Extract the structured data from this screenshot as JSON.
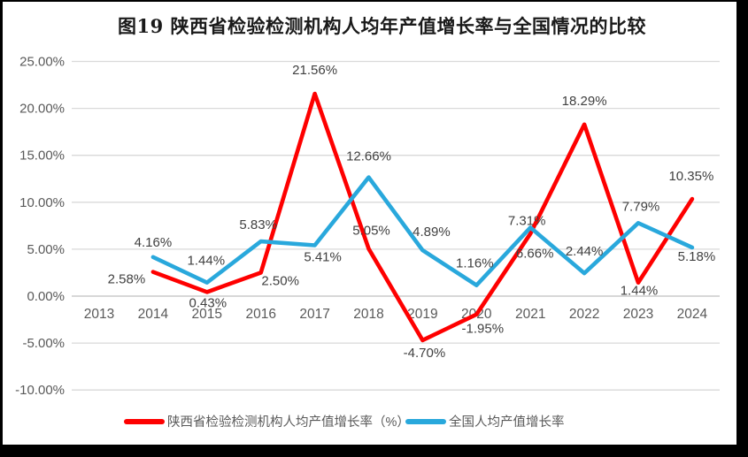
{
  "title": "图19 陕西省检验检测机构人均年产值增长率与全国情况的比较",
  "chart_data": {
    "type": "line",
    "title": "图19 陕西省检验检测机构人均年产值增长率与全国情况的比较",
    "categories": [
      "2013",
      "2014",
      "2015",
      "2016",
      "2017",
      "2018",
      "2019",
      "2020",
      "2021",
      "2022",
      "2023",
      "2024"
    ],
    "series": [
      {
        "id": "shaanxi",
        "name": "陕西省检验检测机构人均产值增长率（%）",
        "color": "#FE0000",
        "values": [
          null,
          2.58,
          0.43,
          2.5,
          21.56,
          5.05,
          -4.7,
          -1.95,
          6.66,
          18.29,
          1.44,
          10.35
        ],
        "point_labels": [
          null,
          "2.58%",
          "0.43%",
          "2.50%",
          "21.56%",
          "5.05%",
          "-4.70%",
          "-1.95%",
          "6.66%",
          "18.29%",
          "1.44%",
          "10.35%"
        ],
        "label_offsets": [
          null,
          [
            -30,
            8
          ],
          [
            1,
            12
          ],
          [
            22,
            9
          ],
          [
            0,
            -27
          ],
          [
            3,
            -21
          ],
          [
            2,
            14
          ],
          [
            7,
            16
          ],
          [
            5,
            22
          ],
          [
            0,
            -27
          ],
          [
            1,
            9
          ],
          [
            -1,
            -26
          ]
        ]
      },
      {
        "id": "national",
        "name": "全国人均产值增长率",
        "color": "#29A8DC",
        "values": [
          null,
          4.16,
          1.44,
          5.83,
          5.41,
          12.66,
          4.89,
          1.16,
          7.31,
          2.44,
          7.79,
          5.18
        ],
        "point_labels": [
          null,
          "4.16%",
          "1.44%",
          "5.83%",
          "5.41%",
          "12.66%",
          "4.89%",
          "1.16%",
          "7.31%",
          "2.44%",
          "7.79%",
          "5.18%"
        ],
        "label_offsets": [
          null,
          [
            0,
            -17
          ],
          [
            -1,
            -25
          ],
          [
            -3,
            -19
          ],
          [
            9,
            13
          ],
          [
            0,
            -24
          ],
          [
            10,
            -21
          ],
          [
            -2,
            -25
          ],
          [
            -4,
            -8
          ],
          [
            0,
            -25
          ],
          [
            3,
            -19
          ],
          [
            5,
            10
          ]
        ]
      }
    ],
    "y_ticks": [
      {
        "value": 25,
        "label": "25.00%"
      },
      {
        "value": 20,
        "label": "20.00%"
      },
      {
        "value": 15,
        "label": "15.00%"
      },
      {
        "value": 10,
        "label": "10.00%"
      },
      {
        "value": 5,
        "label": "5.00%"
      },
      {
        "value": 0,
        "label": "0.00%"
      },
      {
        "value": -5,
        "label": "-5.00%"
      },
      {
        "value": -10,
        "label": "-10.00%"
      }
    ],
    "ylim": [
      -10,
      25
    ],
    "grid": true,
    "legend_position": "bottom",
    "colors": {
      "gridline": "#D9D9D9",
      "axis_line": "#BFBFBF",
      "tick_text": "#595959",
      "data_label_text": "#404040",
      "legend_text": "#595959",
      "title_text": "#1A1A1A"
    }
  }
}
